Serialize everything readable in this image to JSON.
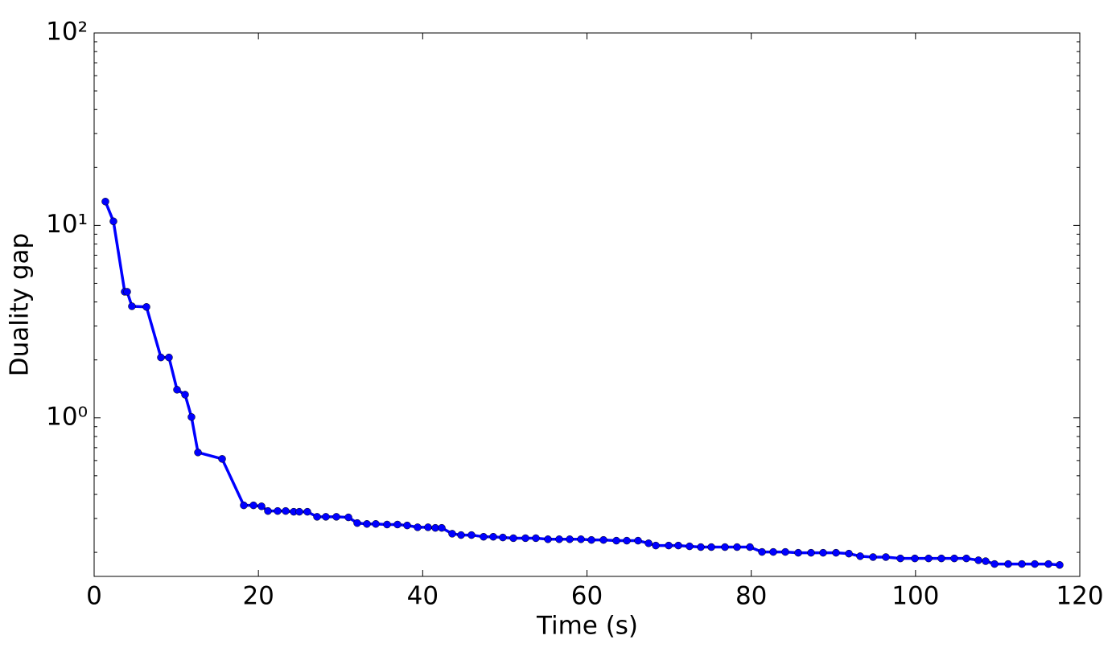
{
  "chart_data": {
    "type": "line",
    "xlabel": "Time (s)",
    "ylabel": "Duality gap",
    "x": [
      1.37,
      2.35,
      3.72,
      4.02,
      4.6,
      6.37,
      8.13,
      9.11,
      10.09,
      11.07,
      11.85,
      12.64,
      15.58,
      18.22,
      19.4,
      20.38,
      21.16,
      22.34,
      23.32,
      24.3,
      24.98,
      25.96,
      27.14,
      28.21,
      29.49,
      30.96,
      32.03,
      33.21,
      34.29,
      35.66,
      36.93,
      38.11,
      39.38,
      40.65,
      41.54,
      42.32,
      43.59,
      44.67,
      45.94,
      47.41,
      48.59,
      49.76,
      51.04,
      52.51,
      53.78,
      55.25,
      56.62,
      57.9,
      59.27,
      60.54,
      62.01,
      63.58,
      64.85,
      66.22,
      67.5,
      68.38,
      69.95,
      71.12,
      72.49,
      73.86,
      75.14,
      76.8,
      78.27,
      79.84,
      81.31,
      82.68,
      84.15,
      85.72,
      87.28,
      88.75,
      90.32,
      91.89,
      93.26,
      94.83,
      96.39,
      98.16,
      99.92,
      101.59,
      103.15,
      104.72,
      106.19,
      107.66,
      108.54,
      109.62,
      111.28,
      112.95,
      114.52,
      116.18,
      117.55
    ],
    "values": [
      13.3,
      10.5,
      4.52,
      4.52,
      3.8,
      3.77,
      2.06,
      2.06,
      1.4,
      1.32,
      1.01,
      0.661,
      0.612,
      0.351,
      0.351,
      0.347,
      0.328,
      0.328,
      0.328,
      0.325,
      0.325,
      0.325,
      0.306,
      0.306,
      0.306,
      0.304,
      0.284,
      0.281,
      0.281,
      0.279,
      0.279,
      0.276,
      0.27,
      0.27,
      0.268,
      0.268,
      0.25,
      0.246,
      0.246,
      0.241,
      0.241,
      0.239,
      0.237,
      0.237,
      0.237,
      0.234,
      0.234,
      0.234,
      0.234,
      0.232,
      0.232,
      0.23,
      0.23,
      0.23,
      0.223,
      0.217,
      0.217,
      0.217,
      0.215,
      0.213,
      0.213,
      0.213,
      0.213,
      0.213,
      0.201,
      0.201,
      0.201,
      0.199,
      0.199,
      0.199,
      0.199,
      0.197,
      0.191,
      0.189,
      0.189,
      0.186,
      0.186,
      0.186,
      0.186,
      0.186,
      0.186,
      0.182,
      0.18,
      0.174,
      0.174,
      0.174,
      0.174,
      0.174,
      0.172
    ],
    "color": "#0000ff",
    "xlim": [
      0,
      120
    ],
    "xticks": [
      0,
      20,
      40,
      60,
      80,
      100,
      120
    ],
    "ylim": [
      0.15,
      100
    ],
    "y_log": true,
    "yticks": [
      {
        "value": 1,
        "label": "10⁰"
      },
      {
        "value": 10,
        "label": "10¹"
      },
      {
        "value": 100,
        "label": "10²"
      }
    ],
    "yminor_ticks": [
      0.2,
      0.3,
      0.4,
      0.5,
      0.6,
      0.7,
      0.8,
      0.9,
      2,
      3,
      4,
      5,
      6,
      7,
      8,
      9,
      20,
      30,
      40,
      50,
      60,
      70,
      80,
      90
    ]
  }
}
